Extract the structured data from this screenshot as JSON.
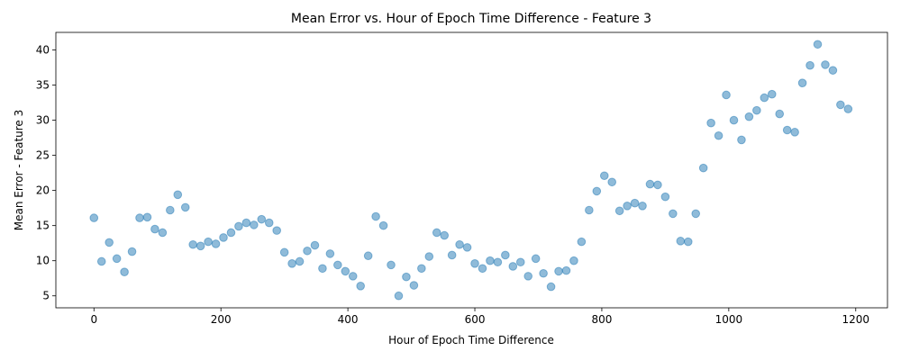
{
  "chart_data": {
    "type": "scatter",
    "title": "Mean Error vs. Hour of Epoch Time Difference - Feature 3",
    "xlabel": "Hour of Epoch Time Difference",
    "ylabel": "Mean Error - Feature 3",
    "xlim": [
      -60,
      1250
    ],
    "ylim": [
      3.3,
      42.5
    ],
    "xticks": [
      0,
      200,
      400,
      600,
      800,
      1000,
      1200
    ],
    "yticks": [
      5,
      10,
      15,
      20,
      25,
      30,
      35,
      40
    ],
    "xtick_labels": [
      "0",
      "200",
      "400",
      "600",
      "800",
      "1000",
      "1200"
    ],
    "ytick_labels": [
      "5",
      "10",
      "15",
      "20",
      "25",
      "30",
      "35",
      "40"
    ],
    "grid": false,
    "point_color": "#1f77b4",
    "point_alpha": 0.5,
    "x": [
      0,
      12,
      24,
      36,
      48,
      60,
      72,
      84,
      96,
      108,
      120,
      132,
      144,
      156,
      168,
      180,
      192,
      204,
      216,
      228,
      240,
      252,
      264,
      276,
      288,
      300,
      312,
      324,
      336,
      348,
      360,
      372,
      384,
      396,
      408,
      420,
      432,
      444,
      456,
      468,
      480,
      492,
      504,
      516,
      528,
      540,
      552,
      564,
      576,
      588,
      600,
      612,
      624,
      636,
      648,
      660,
      672,
      684,
      696,
      708,
      720,
      732,
      744,
      756,
      768,
      780,
      792,
      804,
      816,
      828,
      840,
      852,
      864,
      876,
      888,
      900,
      912,
      924,
      936,
      948,
      960,
      972,
      984,
      996,
      1008,
      1020,
      1032,
      1044,
      1056,
      1068,
      1080,
      1092,
      1104,
      1116,
      1128,
      1140,
      1152,
      1164,
      1176,
      1188
    ],
    "y": [
      16.1,
      9.9,
      12.6,
      10.3,
      8.4,
      11.3,
      16.1,
      16.2,
      14.5,
      14.0,
      17.2,
      19.4,
      17.6,
      12.3,
      12.1,
      12.7,
      12.4,
      13.3,
      14.0,
      14.9,
      15.4,
      15.1,
      15.9,
      15.4,
      14.3,
      11.2,
      9.6,
      9.9,
      11.4,
      12.2,
      8.9,
      11.0,
      9.4,
      8.5,
      7.8,
      6.4,
      10.7,
      16.3,
      15.0,
      9.4,
      5.0,
      7.7,
      6.5,
      8.9,
      10.6,
      14.0,
      13.6,
      10.8,
      12.3,
      11.9,
      9.6,
      8.9,
      10.0,
      9.8,
      10.8,
      9.2,
      9.8,
      7.8,
      10.3,
      8.2,
      6.3,
      8.5,
      8.6,
      10.0,
      12.7,
      17.2,
      19.9,
      22.1,
      21.2,
      17.1,
      17.8,
      18.2,
      17.8,
      20.9,
      20.8,
      19.1,
      16.7,
      12.8,
      12.7,
      16.7,
      23.2,
      29.6,
      27.8,
      33.6,
      30.0,
      27.2,
      30.5,
      31.4,
      33.2,
      33.7,
      30.9,
      28.6,
      28.3,
      35.3,
      37.8,
      40.8,
      37.9,
      37.1,
      32.2,
      31.6
    ]
  }
}
